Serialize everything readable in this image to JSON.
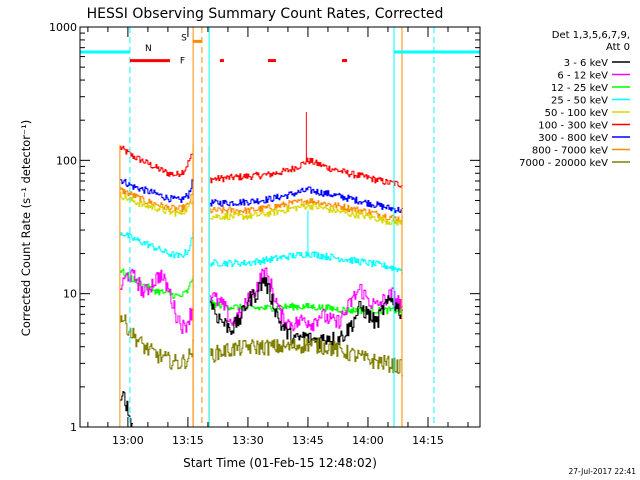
{
  "chart_data": {
    "type": "line",
    "title": "HESSI Observing Summary Count Rates, Corrected",
    "xlabel": "Start Time (01-Feb-15 12:48:02)",
    "ylabel": "Corrected Count Rate (s⁻¹ detector⁻¹)",
    "yscale": "log",
    "xlim_minutes_of_day": [
      768.03,
      868.0
    ],
    "ylim": [
      1,
      1000
    ],
    "xticks": [
      {
        "t": 780,
        "label": "13:00"
      },
      {
        "t": 795,
        "label": "13:15"
      },
      {
        "t": 810,
        "label": "13:30"
      },
      {
        "t": 825,
        "label": "13:45"
      },
      {
        "t": 840,
        "label": "14:00"
      },
      {
        "t": 855,
        "label": "14:15"
      }
    ],
    "yticks": [
      {
        "v": 1,
        "label": "1"
      },
      {
        "v": 10,
        "label": "10"
      },
      {
        "v": 100,
        "label": "100"
      },
      {
        "v": 1000,
        "label": "1000"
      }
    ],
    "legend": {
      "placement": "right",
      "header_lines": [
        "Det 1,3,5,6,7,9,",
        "Att 0"
      ],
      "entries": [
        {
          "label": "3 - 6 keV",
          "color": "#000000"
        },
        {
          "label": "6 - 12 keV",
          "color": "#ff00ff"
        },
        {
          "label": "12 - 25 keV",
          "color": "#00ff00"
        },
        {
          "label": "25 - 50 keV",
          "color": "#00ffff"
        },
        {
          "label": "50 - 100 keV",
          "color": "#d8d800"
        },
        {
          "label": "100 - 300 keV",
          "color": "#ff0000"
        },
        {
          "label": "300 - 800 keV",
          "color": "#0000ff"
        },
        {
          "label": "800 - 7000 keV",
          "color": "#ff8c00"
        },
        {
          "label": "7000 - 20000 keV",
          "color": "#808000"
        }
      ]
    },
    "segments": [
      {
        "start": 778.0,
        "end": 796.3
      },
      {
        "start": 800.3,
        "end": 848.5
      }
    ],
    "series": [
      {
        "name": "100 - 300 keV",
        "color": "#ff0000",
        "points": [
          [
            778,
            125
          ],
          [
            781,
            108
          ],
          [
            784,
            98
          ],
          [
            787,
            88
          ],
          [
            790,
            80
          ],
          [
            792,
            78
          ],
          [
            794,
            84
          ],
          [
            796,
            110
          ],
          [
            800.5,
            72
          ],
          [
            805,
            74
          ],
          [
            810,
            76
          ],
          [
            815,
            78
          ],
          [
            820,
            84
          ],
          [
            823,
            92
          ],
          [
            825,
            100
          ],
          [
            827,
            95
          ],
          [
            830,
            88
          ],
          [
            835,
            80
          ],
          [
            840,
            74
          ],
          [
            845,
            68
          ],
          [
            848.5,
            66
          ]
        ],
        "spike": [
          824.6,
          230
        ]
      },
      {
        "name": "300 - 800 keV",
        "color": "#0000ff",
        "points": [
          [
            778,
            72
          ],
          [
            781,
            64
          ],
          [
            784,
            60
          ],
          [
            787,
            56
          ],
          [
            790,
            52
          ],
          [
            793,
            50
          ],
          [
            795,
            55
          ],
          [
            796.3,
            72
          ],
          [
            800.5,
            48
          ],
          [
            805,
            48
          ],
          [
            810,
            49
          ],
          [
            815,
            51
          ],
          [
            820,
            55
          ],
          [
            825,
            60
          ],
          [
            830,
            56
          ],
          [
            835,
            52
          ],
          [
            840,
            48
          ],
          [
            845,
            44
          ],
          [
            848.5,
            42
          ]
        ]
      },
      {
        "name": "800 - 7000 keV",
        "color": "#ff8c00",
        "points": [
          [
            778,
            60
          ],
          [
            781,
            55
          ],
          [
            784,
            50
          ],
          [
            787,
            47
          ],
          [
            790,
            44
          ],
          [
            793,
            43
          ],
          [
            795,
            46
          ],
          [
            796.3,
            58
          ],
          [
            800.5,
            42
          ],
          [
            805,
            42
          ],
          [
            810,
            42
          ],
          [
            815,
            44
          ],
          [
            820,
            47
          ],
          [
            825,
            50
          ],
          [
            830,
            47
          ],
          [
            835,
            44
          ],
          [
            840,
            41
          ],
          [
            845,
            38
          ],
          [
            848.5,
            36
          ]
        ]
      },
      {
        "name": "50 - 100 keV",
        "color": "#d8d800",
        "points": [
          [
            778,
            55
          ],
          [
            781,
            50
          ],
          [
            784,
            46
          ],
          [
            787,
            44
          ],
          [
            790,
            41
          ],
          [
            793,
            40
          ],
          [
            795,
            44
          ],
          [
            796.3,
            52
          ],
          [
            800.5,
            38
          ],
          [
            805,
            38
          ],
          [
            810,
            38
          ],
          [
            815,
            40
          ],
          [
            820,
            43
          ],
          [
            825,
            46
          ],
          [
            830,
            43
          ],
          [
            835,
            40
          ],
          [
            840,
            38
          ],
          [
            845,
            35
          ],
          [
            848.5,
            34
          ]
        ]
      },
      {
        "name": "25 - 50 keV",
        "color": "#00ffff",
        "points": [
          [
            778,
            29
          ],
          [
            781,
            26
          ],
          [
            784,
            24
          ],
          [
            787,
            22
          ],
          [
            790,
            20
          ],
          [
            793,
            19
          ],
          [
            795,
            21
          ],
          [
            796.3,
            28
          ],
          [
            800.5,
            17
          ],
          [
            805,
            17
          ],
          [
            810,
            17
          ],
          [
            815,
            18
          ],
          [
            820,
            19
          ],
          [
            825,
            20
          ],
          [
            830,
            19
          ],
          [
            835,
            18
          ],
          [
            840,
            17
          ],
          [
            845,
            16
          ],
          [
            848.5,
            15
          ]
        ],
        "spike": [
          825.0,
          42
        ]
      },
      {
        "name": "12 - 25 keV",
        "color": "#00ff00",
        "points": [
          [
            778,
            15
          ],
          [
            781,
            13
          ],
          [
            784,
            11.5
          ],
          [
            787,
            10.5
          ],
          [
            790,
            10
          ],
          [
            793,
            9.5
          ],
          [
            795,
            10.5
          ],
          [
            796.3,
            14
          ],
          [
            800.5,
            8.5
          ],
          [
            805,
            8
          ],
          [
            810,
            7.8
          ],
          [
            815,
            7.8
          ],
          [
            820,
            8
          ],
          [
            825,
            8
          ],
          [
            830,
            7.8
          ],
          [
            835,
            7.5
          ],
          [
            840,
            7.5
          ],
          [
            845,
            7.5
          ],
          [
            848.5,
            7.5
          ]
        ]
      },
      {
        "name": "6 - 12 keV",
        "color": "#ff00ff",
        "points": [
          [
            778,
            11
          ],
          [
            780,
            14
          ],
          [
            782,
            13
          ],
          [
            784,
            10
          ],
          [
            786,
            12
          ],
          [
            788,
            14
          ],
          [
            790,
            11
          ],
          [
            792,
            7
          ],
          [
            794,
            5.5
          ],
          [
            796.3,
            8
          ],
          [
            800.5,
            10
          ],
          [
            802,
            9
          ],
          [
            804,
            8
          ],
          [
            806,
            6
          ],
          [
            808,
            7
          ],
          [
            810,
            9
          ],
          [
            812,
            11
          ],
          [
            814,
            15
          ],
          [
            816,
            11
          ],
          [
            818,
            7
          ],
          [
            820,
            6
          ],
          [
            822,
            6
          ],
          [
            824,
            6.5
          ],
          [
            826,
            6
          ],
          [
            828,
            7
          ],
          [
            830,
            6.5
          ],
          [
            832,
            6
          ],
          [
            834,
            7
          ],
          [
            836,
            9
          ],
          [
            838,
            11
          ],
          [
            840,
            9
          ],
          [
            842,
            8
          ],
          [
            844,
            9
          ],
          [
            846,
            10
          ],
          [
            848.5,
            8
          ]
        ]
      },
      {
        "name": "3 - 6 keV",
        "color": "#000000",
        "points": [
          [
            778,
            1.4
          ],
          [
            779,
            1.8
          ],
          [
            780,
            1.3
          ],
          [
            781,
            1.0
          ],
          [
            800.5,
            9
          ],
          [
            802,
            7
          ],
          [
            804,
            6
          ],
          [
            806,
            5.5
          ],
          [
            808,
            6.5
          ],
          [
            810,
            9
          ],
          [
            812,
            10
          ],
          [
            814,
            13
          ],
          [
            816,
            9
          ],
          [
            818,
            6
          ],
          [
            820,
            5
          ],
          [
            822,
            4.5
          ],
          [
            824,
            4.8
          ],
          [
            826,
            4.5
          ],
          [
            828,
            4.5
          ],
          [
            830,
            4.8
          ],
          [
            832,
            4.5
          ],
          [
            834,
            5
          ],
          [
            836,
            6
          ],
          [
            838,
            8
          ],
          [
            840,
            7
          ],
          [
            842,
            6
          ],
          [
            844,
            8
          ],
          [
            846,
            9
          ],
          [
            848.5,
            7
          ]
        ]
      },
      {
        "name": "7000 - 20000 keV",
        "color": "#808000",
        "points": [
          [
            778,
            7
          ],
          [
            781,
            5
          ],
          [
            784,
            4
          ],
          [
            787,
            3.5
          ],
          [
            790,
            3.2
          ],
          [
            793,
            3.0
          ],
          [
            795,
            3.3
          ],
          [
            796.3,
            4
          ],
          [
            800.5,
            3.5
          ],
          [
            805,
            3.8
          ],
          [
            810,
            4
          ],
          [
            815,
            4
          ],
          [
            820,
            4
          ],
          [
            825,
            4.2
          ],
          [
            830,
            4
          ],
          [
            835,
            3.6
          ],
          [
            840,
            3.2
          ],
          [
            845,
            3
          ],
          [
            848.5,
            2.8
          ]
        ]
      }
    ],
    "annotations": {
      "orbit_flags": [
        {
          "label": "N",
          "color": "#00ffff",
          "value": 650,
          "ranges": [
            [
              768.03,
              780.5
            ],
            [
              846.5,
              868.0
            ]
          ]
        },
        {
          "label": "S",
          "color": "#ff8c00",
          "value": 780,
          "ranges": [
            [
              796.3,
              798.5
            ]
          ]
        },
        {
          "label": "F",
          "color": "#ff0000",
          "value": 560,
          "ranges": [
            [
              780.5,
              790.5
            ],
            [
              803.0,
              804.0
            ],
            [
              815.0,
              817.0
            ],
            [
              833.5,
              834.8
            ]
          ]
        }
      ],
      "vertical_lines": [
        {
          "t": 768.03,
          "color": "#00ffff",
          "dashed": false
        },
        {
          "t": 780.5,
          "color": "#00ffff",
          "dashed": true
        },
        {
          "t": 796.3,
          "color": "#ff8c00",
          "dashed": false
        },
        {
          "t": 798.5,
          "color": "#ff8c00",
          "dashed": true
        },
        {
          "t": 800.3,
          "color": "#00ffff",
          "dashed": false
        },
        {
          "t": 846.5,
          "color": "#00ffff",
          "dashed": false
        },
        {
          "t": 848.5,
          "color": "#ff8c00",
          "dashed": false
        },
        {
          "t": 856.5,
          "color": "#00ffff",
          "dashed": true
        }
      ]
    },
    "footer": "27-Jul-2017 22:41"
  }
}
